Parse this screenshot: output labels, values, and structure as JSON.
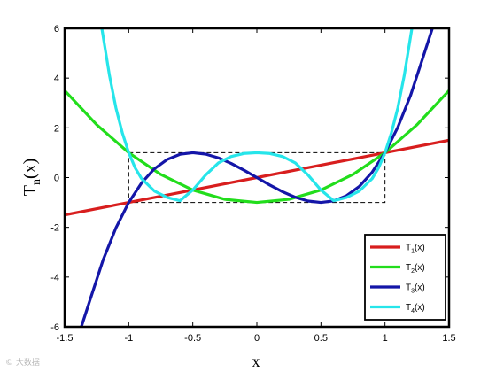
{
  "chart_data": {
    "type": "line",
    "xlabel": "x",
    "ylabel": "T",
    "ylabel_sub": "n",
    "ylabel_suffix": "(x)",
    "xlim": [
      -1.5,
      1.5
    ],
    "ylim": [
      -6,
      6
    ],
    "x_ticks": [
      "-1.5",
      "-1",
      "-0.5",
      "0",
      "0.5",
      "1",
      "1.5"
    ],
    "y_ticks": [
      "-6",
      "-4",
      "-2",
      "0",
      "2",
      "4",
      "6"
    ],
    "grid": false,
    "legend_position": "bottom-right",
    "reference_box": {
      "x": [
        -1,
        1
      ],
      "y": [
        -1,
        1
      ],
      "style": "dashed"
    },
    "series": [
      {
        "name": "T1(x)",
        "label_main": "T",
        "label_sub": "1",
        "label_suffix": "(x)",
        "color": "#d81e1e",
        "x": [
          -1.5,
          -1,
          -0.5,
          0,
          0.5,
          1,
          1.5
        ],
        "y": [
          -1.5,
          -1,
          -0.5,
          0,
          0.5,
          1,
          1.5
        ]
      },
      {
        "name": "T2(x)",
        "label_main": "T",
        "label_sub": "2",
        "label_suffix": "(x)",
        "color": "#22dd1c",
        "x": [
          -1.5,
          -1.25,
          -1,
          -0.75,
          -0.5,
          -0.25,
          0,
          0.25,
          0.5,
          0.75,
          1,
          1.25,
          1.5
        ],
        "y": [
          3.5,
          2.125,
          1,
          0.125,
          -0.5,
          -0.875,
          -1,
          -0.875,
          -0.5,
          0.125,
          1,
          2.125,
          3.5
        ]
      },
      {
        "name": "T3(x)",
        "label_main": "T",
        "label_sub": "3",
        "label_suffix": "(x)",
        "color": "#1416a8",
        "x": [
          -1.37,
          -1.3,
          -1.2,
          -1.1,
          -1,
          -0.9,
          -0.8,
          -0.7,
          -0.6,
          -0.5,
          -0.4,
          -0.3,
          -0.2,
          -0.1,
          0,
          0.1,
          0.2,
          0.3,
          0.4,
          0.5,
          0.6,
          0.7,
          0.8,
          0.9,
          1,
          1.1,
          1.2,
          1.3,
          1.37
        ],
        "y": [
          -6,
          -4.888,
          -3.312,
          -2.024,
          -1,
          -0.216,
          0.352,
          0.728,
          0.936,
          1,
          0.944,
          0.792,
          0.568,
          0.296,
          0,
          -0.296,
          -0.568,
          -0.792,
          -0.944,
          -1,
          -0.936,
          -0.728,
          -0.352,
          0.216,
          1,
          2.024,
          3.312,
          4.888,
          6
        ]
      },
      {
        "name": "T4(x)",
        "label_main": "T",
        "label_sub": "4",
        "label_suffix": "(x)",
        "color": "#26e5ea",
        "x": [
          -1.21,
          -1.15,
          -1.1,
          -1.05,
          -1,
          -0.95,
          -0.9,
          -0.8,
          -0.7,
          -0.6,
          -0.5,
          -0.4,
          -0.3,
          -0.2,
          -0.1,
          0,
          0.1,
          0.2,
          0.3,
          0.4,
          0.5,
          0.6,
          0.7,
          0.8,
          0.9,
          0.95,
          1,
          1.05,
          1.1,
          1.15,
          1.21
        ],
        "y": [
          6,
          4.1,
          2.8,
          1.8,
          1,
          0.39,
          -0.04,
          -0.54,
          -0.8,
          -0.93,
          -0.5,
          0.1,
          0.59,
          0.85,
          0.97,
          1,
          0.97,
          0.85,
          0.59,
          0.1,
          -0.5,
          -0.93,
          -0.8,
          -0.54,
          -0.04,
          0.39,
          1,
          1.8,
          2.8,
          4.1,
          6
        ]
      }
    ]
  },
  "watermark": "© 大数据"
}
